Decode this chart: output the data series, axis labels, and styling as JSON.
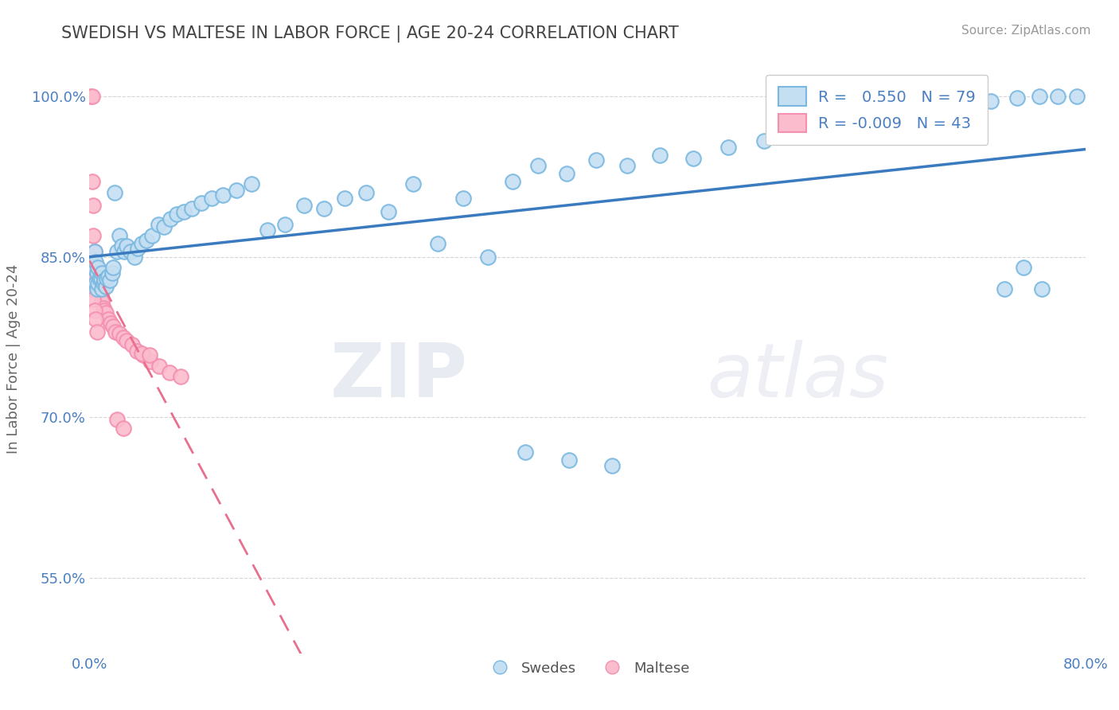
{
  "title": "SWEDISH VS MALTESE IN LABOR FORCE | AGE 20-24 CORRELATION CHART",
  "source": "Source: ZipAtlas.com",
  "ylabel": "In Labor Force | Age 20-24",
  "xmin": 0.0,
  "xmax": 0.8,
  "ymin": 0.48,
  "ymax": 1.03,
  "y_ticks": [
    0.55,
    0.7,
    0.85,
    1.0
  ],
  "y_tick_labels": [
    "55.0%",
    "70.0%",
    "85.0%",
    "100.0%"
  ],
  "swedes_r": 0.55,
  "swedes_n": 79,
  "maltese_r": -0.009,
  "maltese_n": 43,
  "blue_color": "#7ab8e0",
  "blue_fill": "#c5dff2",
  "pink_color": "#f490b0",
  "pink_fill": "#fbbcce",
  "blue_line_color": "#3a7abf",
  "pink_line_color": "#e8708e",
  "swedes_x": [
    0.003,
    0.004,
    0.005,
    0.005,
    0.006,
    0.006,
    0.007,
    0.007,
    0.008,
    0.009,
    0.01,
    0.01,
    0.011,
    0.012,
    0.013,
    0.014,
    0.015,
    0.016,
    0.018,
    0.019,
    0.02,
    0.022,
    0.024,
    0.026,
    0.028,
    0.03,
    0.033,
    0.036,
    0.039,
    0.042,
    0.046,
    0.05,
    0.055,
    0.06,
    0.065,
    0.07,
    0.076,
    0.082,
    0.09,
    0.098,
    0.107,
    0.118,
    0.13,
    0.143,
    0.157,
    0.172,
    0.188,
    0.205,
    0.222,
    0.24,
    0.26,
    0.28,
    0.3,
    0.32,
    0.34,
    0.36,
    0.383,
    0.407,
    0.432,
    0.458,
    0.485,
    0.513,
    0.542,
    0.572,
    0.603,
    0.635,
    0.668,
    0.702,
    0.724,
    0.745,
    0.763,
    0.778,
    0.793,
    0.735,
    0.75,
    0.765,
    0.35,
    0.385,
    0.42
  ],
  "swedes_y": [
    0.84,
    0.855,
    0.825,
    0.845,
    0.835,
    0.82,
    0.84,
    0.825,
    0.83,
    0.83,
    0.82,
    0.835,
    0.825,
    0.828,
    0.822,
    0.83,
    0.832,
    0.828,
    0.835,
    0.84,
    0.91,
    0.855,
    0.87,
    0.86,
    0.855,
    0.86,
    0.855,
    0.85,
    0.858,
    0.862,
    0.865,
    0.87,
    0.88,
    0.878,
    0.885,
    0.89,
    0.892,
    0.895,
    0.9,
    0.905,
    0.908,
    0.912,
    0.918,
    0.875,
    0.88,
    0.898,
    0.895,
    0.905,
    0.91,
    0.892,
    0.918,
    0.862,
    0.905,
    0.85,
    0.92,
    0.935,
    0.928,
    0.94,
    0.935,
    0.945,
    0.942,
    0.952,
    0.958,
    0.962,
    0.968,
    0.972,
    0.978,
    0.988,
    0.995,
    0.998,
    1.0,
    1.0,
    1.0,
    0.82,
    0.84,
    0.82,
    0.668,
    0.66,
    0.655
  ],
  "maltese_x": [
    0.001,
    0.002,
    0.002,
    0.003,
    0.003,
    0.004,
    0.004,
    0.005,
    0.005,
    0.006,
    0.006,
    0.007,
    0.007,
    0.008,
    0.009,
    0.01,
    0.011,
    0.012,
    0.013,
    0.015,
    0.017,
    0.019,
    0.021,
    0.024,
    0.027,
    0.03,
    0.034,
    0.038,
    0.043,
    0.049,
    0.056,
    0.064,
    0.073,
    0.042,
    0.048,
    0.002,
    0.003,
    0.003,
    0.004,
    0.005,
    0.006,
    0.022,
    0.027
  ],
  "maltese_y": [
    1.0,
    1.0,
    0.92,
    0.898,
    0.87,
    0.855,
    0.84,
    0.84,
    0.835,
    0.832,
    0.825,
    0.83,
    0.822,
    0.818,
    0.815,
    0.808,
    0.802,
    0.8,
    0.798,
    0.792,
    0.788,
    0.785,
    0.78,
    0.778,
    0.775,
    0.772,
    0.768,
    0.762,
    0.758,
    0.752,
    0.748,
    0.742,
    0.738,
    0.76,
    0.758,
    0.83,
    0.82,
    0.81,
    0.8,
    0.792,
    0.78,
    0.698,
    0.69
  ]
}
